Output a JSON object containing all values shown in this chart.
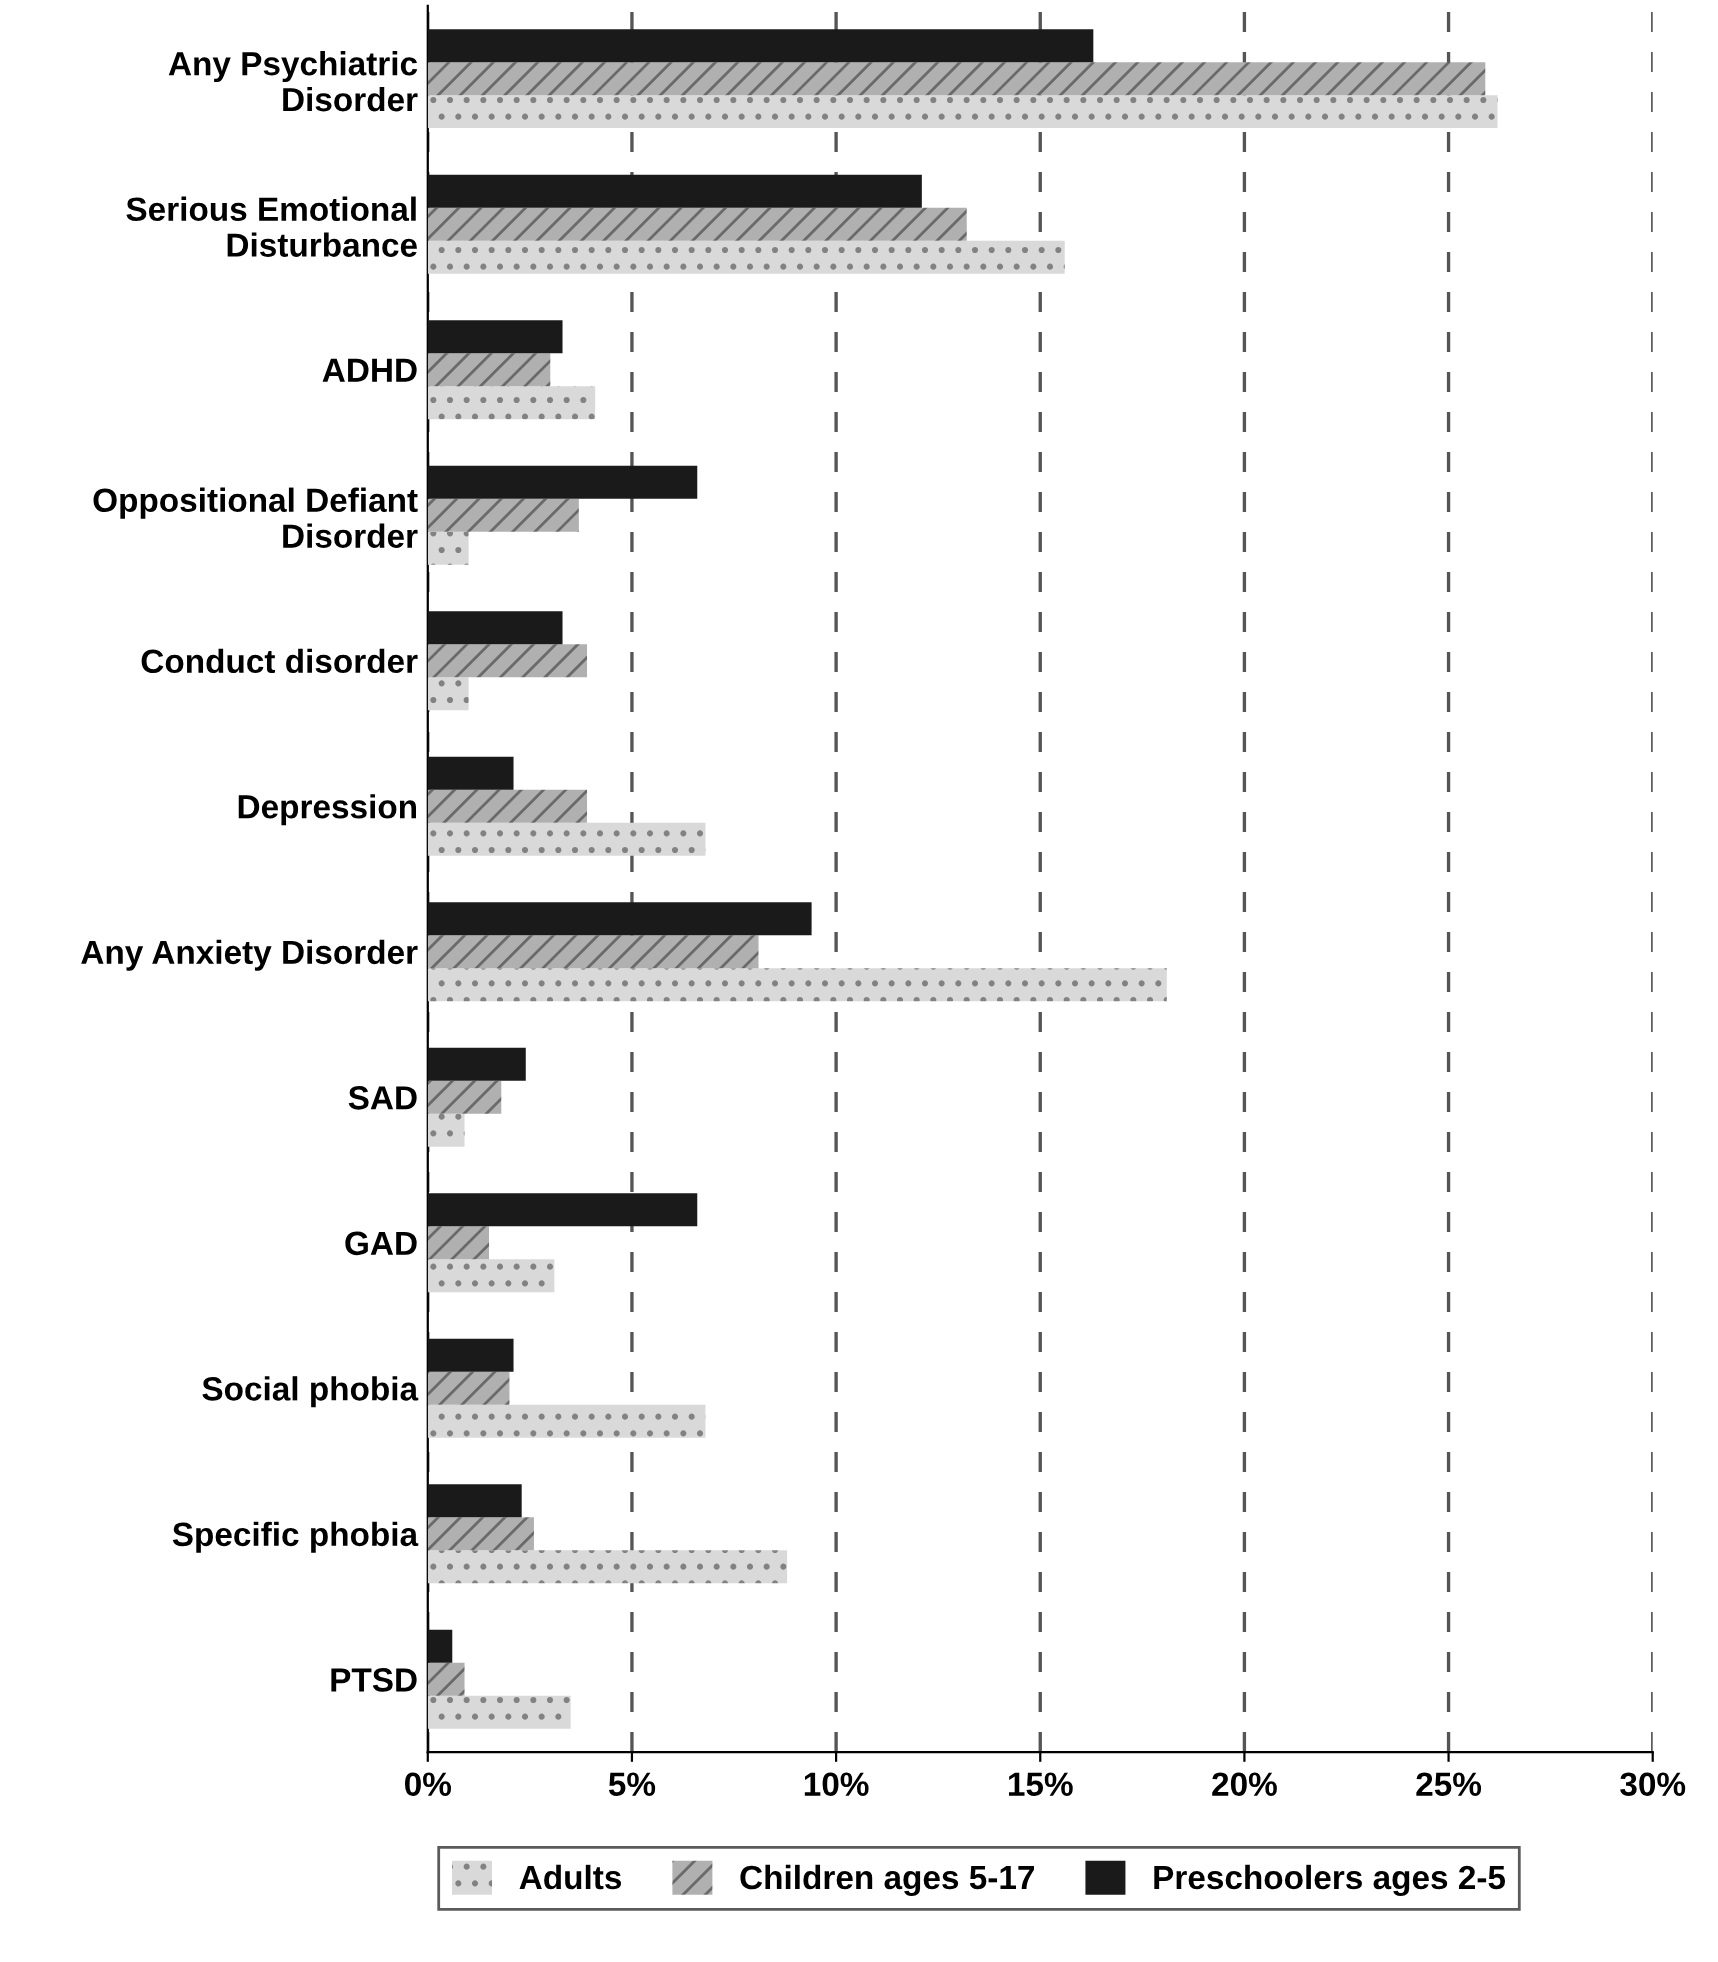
{
  "chart_data": {
    "type": "bar",
    "orientation": "horizontal",
    "categories": [
      "Any Psychiatric\nDisorder",
      "Serious Emotional\nDisturbance",
      "ADHD",
      "Oppositional Defiant\nDisorder",
      "Conduct disorder",
      "Depression",
      "Any Anxiety Disorder",
      "SAD",
      "GAD",
      "Social phobia",
      "Specific phobia",
      "PTSD"
    ],
    "series": [
      {
        "name": "Adults",
        "color": "#d9d9d9",
        "values": [
          26.2,
          15.6,
          4.1,
          1.0,
          1.0,
          6.8,
          18.1,
          0.9,
          3.1,
          6.8,
          8.8,
          3.5
        ]
      },
      {
        "name": "Children ages 5-17",
        "color": "#b0b0b0",
        "values": [
          25.9,
          13.2,
          3.0,
          3.7,
          3.9,
          3.9,
          8.1,
          1.8,
          1.5,
          2.0,
          2.6,
          0.9
        ]
      },
      {
        "name": "Preschoolers ages 2-5",
        "color": "#1a1a1a",
        "values": [
          16.3,
          12.1,
          3.3,
          6.6,
          3.3,
          2.1,
          9.4,
          2.4,
          6.6,
          2.1,
          2.3,
          0.6
        ]
      }
    ],
    "xlim": [
      0,
      30
    ],
    "xticks": [
      {
        "value": 0,
        "label": "0%"
      },
      {
        "value": 5,
        "label": "5%"
      },
      {
        "value": 10,
        "label": "10%"
      },
      {
        "value": 15,
        "label": "15%"
      },
      {
        "value": 20,
        "label": "20%"
      },
      {
        "value": 25,
        "label": "25%"
      },
      {
        "value": 30,
        "label": "30%"
      }
    ],
    "grid": "x",
    "legend": "bottom"
  }
}
